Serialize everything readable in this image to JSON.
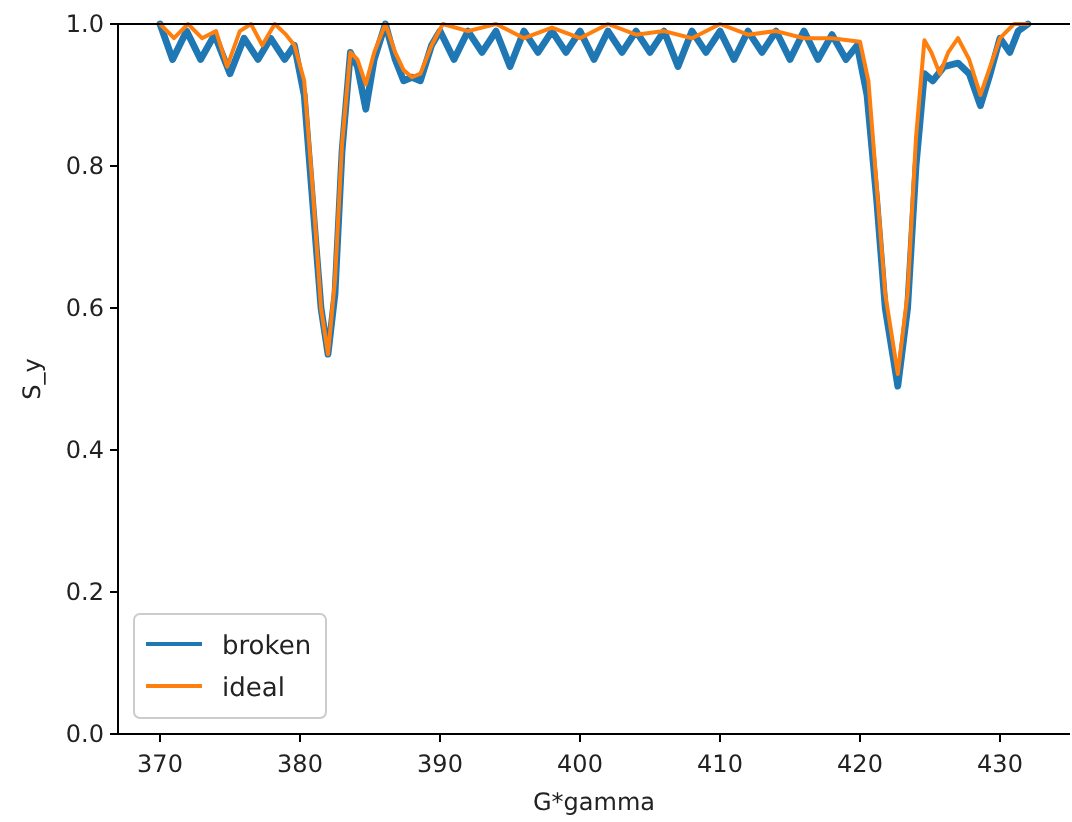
{
  "chart_data": {
    "type": "line",
    "xlabel": "G*gamma",
    "ylabel": "S_y",
    "xlim": [
      367,
      435
    ],
    "ylim": [
      0,
      1
    ],
    "xticks": [
      370,
      380,
      390,
      400,
      410,
      420,
      430
    ],
    "yticks": [
      {
        "value": 0,
        "label": "0.0"
      },
      {
        "value": 0.2,
        "label": "0.2"
      },
      {
        "value": 0.4,
        "label": "0.4"
      },
      {
        "value": 0.6,
        "label": "0.6"
      },
      {
        "value": 0.8,
        "label": "0.8"
      },
      {
        "value": 1,
        "label": "1.0"
      }
    ],
    "legend": "bottom left",
    "grid": false,
    "series": [
      {
        "name": "broken",
        "color": "#1f77b4",
        "x": [
          370,
          370.9,
          371.9,
          372.9,
          373.9,
          375,
          376,
          377,
          377.9,
          378.9,
          379.6,
          380.3,
          380.9,
          381.5,
          382,
          382.5,
          383,
          383.6,
          384.1,
          384.7,
          385.3,
          386.1,
          386.8,
          387.4,
          388,
          388.6,
          389.4,
          390,
          391,
          392,
          393,
          394,
          395,
          396,
          397,
          398,
          399,
          400,
          401,
          402,
          403,
          404,
          405,
          406,
          407,
          408,
          409,
          410,
          411,
          412,
          413,
          414,
          415,
          416,
          417,
          418,
          419,
          419.8,
          420.5,
          421.2,
          421.8,
          422.7,
          423.4,
          424,
          424.6,
          425.2,
          426,
          427,
          427.8,
          428.6,
          429.3,
          430,
          430.7,
          431.3,
          432
        ],
        "values": [
          1,
          0.95,
          0.99,
          0.95,
          0.985,
          0.93,
          0.98,
          0.95,
          0.98,
          0.95,
          0.97,
          0.9,
          0.75,
          0.6,
          0.535,
          0.62,
          0.82,
          0.96,
          0.94,
          0.88,
          0.95,
          1,
          0.95,
          0.92,
          0.925,
          0.92,
          0.97,
          0.99,
          0.95,
          0.99,
          0.96,
          0.99,
          0.94,
          0.99,
          0.96,
          0.99,
          0.96,
          0.99,
          0.95,
          0.99,
          0.96,
          0.99,
          0.96,
          0.99,
          0.94,
          0.99,
          0.96,
          0.99,
          0.95,
          0.99,
          0.96,
          0.99,
          0.95,
          0.99,
          0.95,
          0.985,
          0.95,
          0.97,
          0.9,
          0.75,
          0.6,
          0.49,
          0.6,
          0.8,
          0.93,
          0.92,
          0.94,
          0.945,
          0.93,
          0.885,
          0.93,
          0.98,
          0.96,
          0.99,
          1
        ]
      },
      {
        "name": "ideal",
        "color": "#ff7f0e",
        "x": [
          370,
          371,
          372,
          373,
          374,
          374.8,
          375.7,
          376.5,
          377.3,
          378.2,
          379,
          379.6,
          380.3,
          380.9,
          381.5,
          382,
          382.5,
          383,
          383.6,
          384.1,
          384.7,
          385.3,
          386.1,
          386.8,
          387.4,
          388,
          388.6,
          389.4,
          390.2,
          392,
          394,
          396,
          398,
          400,
          402,
          404,
          406,
          408,
          410,
          412,
          414,
          416,
          418,
          420,
          420.6,
          421.2,
          421.8,
          422.7,
          423.4,
          424,
          424.6,
          425.1,
          425.7,
          426.3,
          427,
          427.8,
          428.6,
          429.3,
          430,
          431,
          432
        ],
        "values": [
          1,
          0.98,
          1,
          0.98,
          0.99,
          0.94,
          0.99,
          1,
          0.97,
          1,
          0.985,
          0.97,
          0.92,
          0.77,
          0.6,
          0.535,
          0.64,
          0.83,
          0.96,
          0.95,
          0.915,
          0.96,
          1,
          0.96,
          0.935,
          0.925,
          0.93,
          0.97,
          1,
          0.99,
          1,
          0.98,
          0.995,
          0.98,
          1,
          0.985,
          0.99,
          0.98,
          1,
          0.985,
          0.99,
          0.98,
          0.98,
          0.975,
          0.92,
          0.77,
          0.62,
          0.507,
          0.62,
          0.84,
          0.977,
          0.96,
          0.93,
          0.96,
          0.98,
          0.95,
          0.9,
          0.94,
          0.98,
          1,
          1
        ]
      }
    ]
  }
}
